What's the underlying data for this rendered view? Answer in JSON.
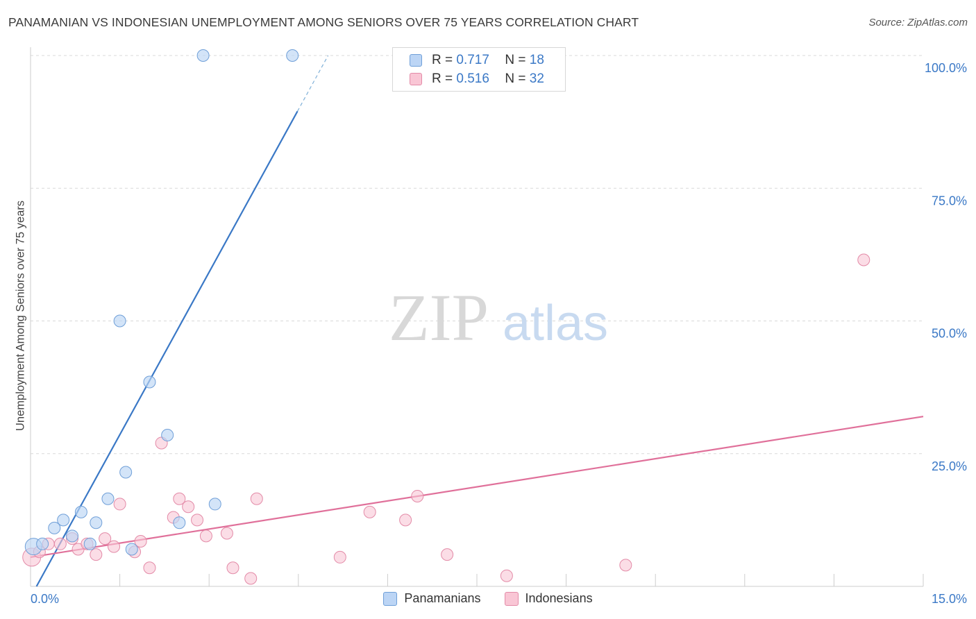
{
  "title": "PANAMANIAN VS INDONESIAN UNEMPLOYMENT AMONG SENIORS OVER 75 YEARS CORRELATION CHART",
  "source": "Source: ZipAtlas.com",
  "watermark": {
    "zip": "ZIP",
    "atlas": "atlas"
  },
  "legend_top": [
    {
      "r_label": "R =",
      "r_value": "0.717",
      "n_label": "N =",
      "n_value": "18"
    },
    {
      "r_label": "R =",
      "r_value": "0.516",
      "n_label": "N =",
      "n_value": "32"
    }
  ],
  "legend_bottom": [
    "Panamanians",
    "Indonesians"
  ],
  "chart_data": {
    "type": "scatter",
    "title": "PANAMANIAN VS INDONESIAN UNEMPLOYMENT AMONG SENIORS OVER 75 YEARS CORRELATION CHART",
    "xlabel": "",
    "ylabel": "Unemployment Among Seniors over 75 years",
    "xlim": [
      0,
      15
    ],
    "ylim": [
      0,
      100
    ],
    "x_tick_labels": [
      "0.0%",
      "15.0%"
    ],
    "y_ticks": [
      25,
      50,
      75,
      100
    ],
    "y_tick_labels": [
      "25.0%",
      "50.0%",
      "75.0%",
      "100.0%"
    ],
    "grid": true,
    "colors": {
      "blue": "#3a78c6",
      "pink": "#e0709a",
      "blue_fill": "#bcd5f5",
      "pink_fill": "#f9c6d5"
    },
    "series": [
      {
        "name": "Panamanians",
        "color": "#3a78c6",
        "points": [
          [
            0.05,
            7.5
          ],
          [
            0.2,
            8
          ],
          [
            0.4,
            11
          ],
          [
            0.55,
            12.5
          ],
          [
            0.7,
            9.5
          ],
          [
            0.85,
            14
          ],
          [
            1.0,
            8
          ],
          [
            1.1,
            12
          ],
          [
            1.3,
            16.5
          ],
          [
            1.5,
            50
          ],
          [
            1.6,
            21.5
          ],
          [
            1.7,
            7
          ],
          [
            2.0,
            38.5
          ],
          [
            2.3,
            28.5
          ],
          [
            2.5,
            12
          ],
          [
            3.1,
            15.5
          ],
          [
            2.9,
            100
          ],
          [
            4.4,
            100
          ]
        ],
        "trend": {
          "x": [
            0.1,
            5.0
          ],
          "y": [
            0,
            100
          ]
        }
      },
      {
        "name": "Indonesians",
        "color": "#e0709a",
        "points": [
          [
            0.02,
            5.5
          ],
          [
            0.15,
            6.5
          ],
          [
            0.3,
            8
          ],
          [
            0.5,
            8
          ],
          [
            0.7,
            9
          ],
          [
            0.8,
            7
          ],
          [
            0.95,
            8
          ],
          [
            1.1,
            6
          ],
          [
            1.25,
            9
          ],
          [
            1.4,
            7.5
          ],
          [
            1.5,
            15.5
          ],
          [
            1.75,
            6.5
          ],
          [
            1.85,
            8.5
          ],
          [
            2.0,
            3.5
          ],
          [
            2.2,
            27
          ],
          [
            2.4,
            13
          ],
          [
            2.5,
            16.5
          ],
          [
            2.65,
            15
          ],
          [
            2.8,
            12.5
          ],
          [
            2.95,
            9.5
          ],
          [
            3.3,
            10
          ],
          [
            3.4,
            3.5
          ],
          [
            3.8,
            16.5
          ],
          [
            3.7,
            1.5
          ],
          [
            5.2,
            5.5
          ],
          [
            5.7,
            14
          ],
          [
            6.3,
            12.5
          ],
          [
            6.5,
            17
          ],
          [
            7.0,
            6
          ],
          [
            8.0,
            2
          ],
          [
            10.0,
            4
          ],
          [
            14.0,
            61.5
          ]
        ],
        "trend": {
          "x": [
            0,
            15
          ],
          "y": [
            5.5,
            32
          ]
        }
      }
    ]
  }
}
